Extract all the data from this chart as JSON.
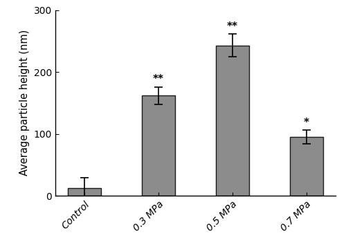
{
  "categories": [
    "Control",
    "0.3 MPa",
    "0.5 MPa",
    "0.7 MPa"
  ],
  "values": [
    12.0,
    162.0,
    243.0,
    95.0
  ],
  "errors": [
    17.0,
    14.0,
    18.0,
    11.0
  ],
  "bar_color": "#8c8c8c",
  "bar_edgecolor": "#1a1a1a",
  "ylabel": "Average particle height (nm)",
  "ylim": [
    0,
    300
  ],
  "yticks": [
    0,
    100,
    200,
    300
  ],
  "significance": [
    "",
    "**",
    "**",
    "*"
  ],
  "bar_width": 0.45,
  "figsize": [
    5.0,
    3.63
  ],
  "dpi": 100,
  "background_color": "#ffffff",
  "sig_fontsize": 11,
  "ylabel_fontsize": 10.5,
  "tick_fontsize": 10
}
